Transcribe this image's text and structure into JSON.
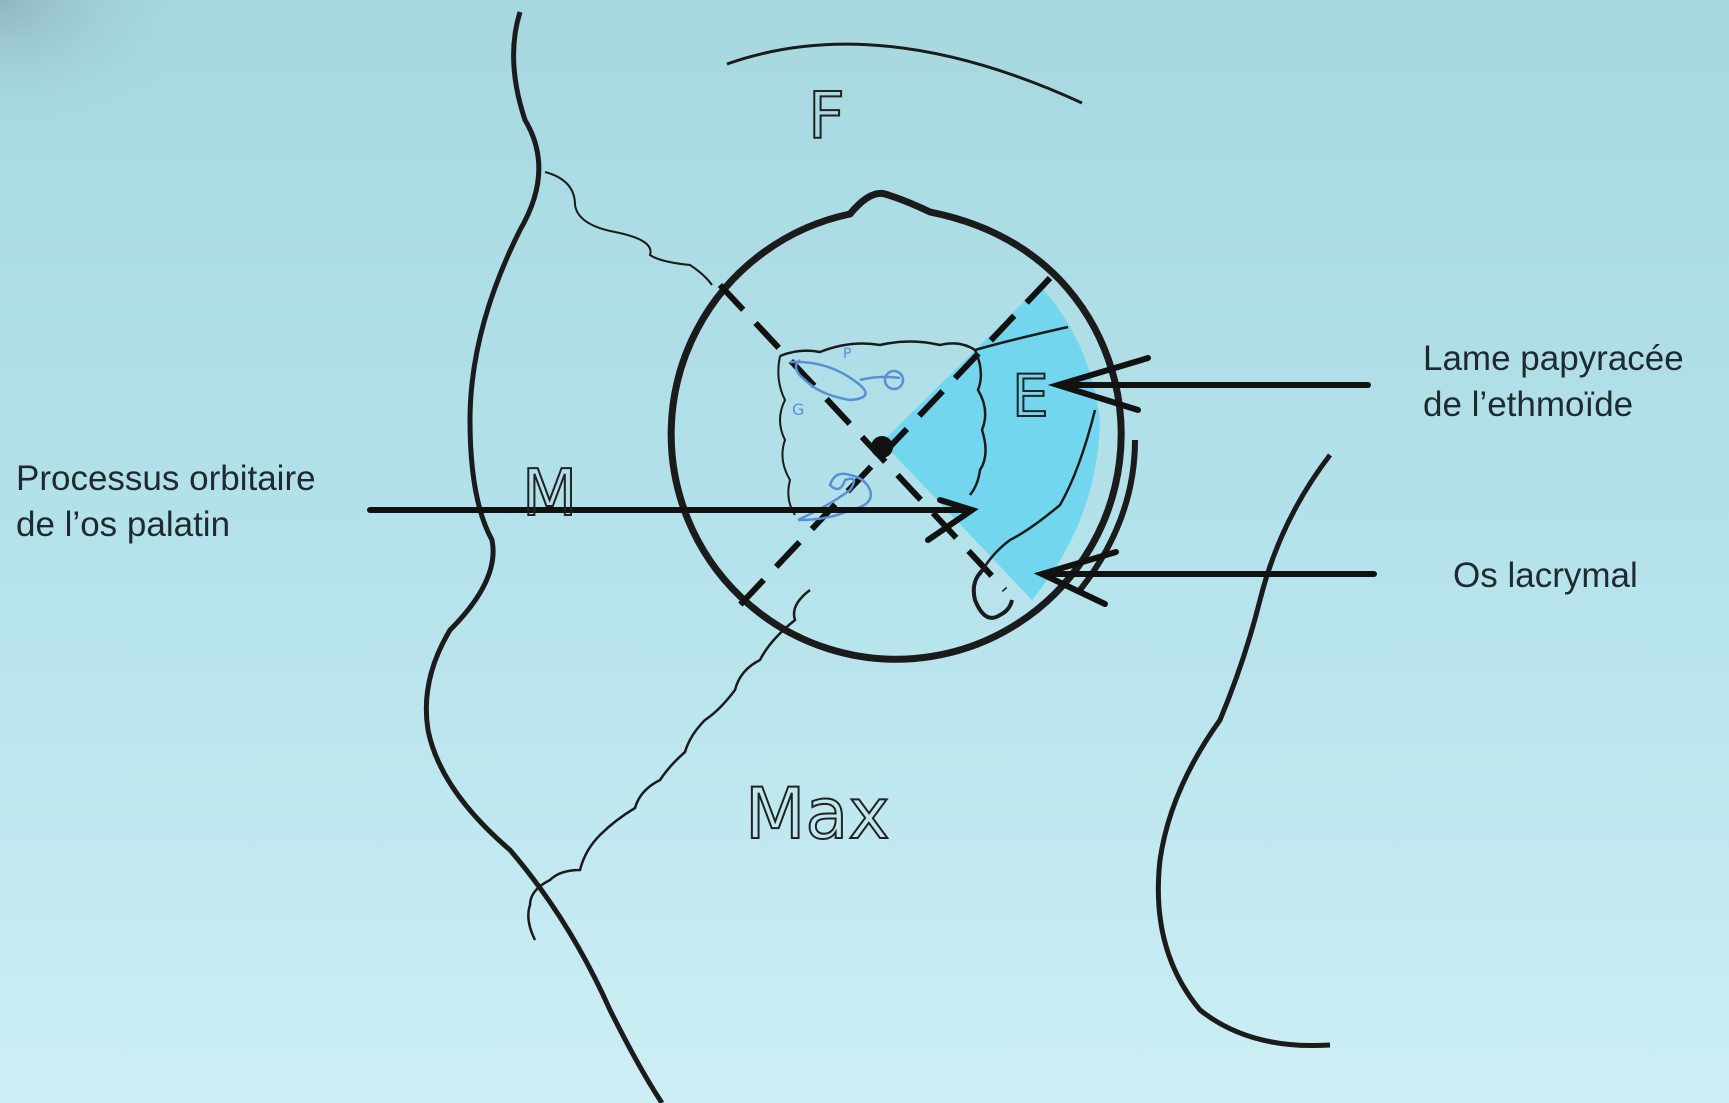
{
  "colors": {
    "background_top": "#a9d9e0",
    "background_bottom": "#cdeef3",
    "highlight": "#6fd7ee",
    "stroke": "#111111",
    "blue_ink": "#5a8fd6"
  },
  "labels": {
    "palatin_line1": "Processus orbitaire",
    "palatin_line2": "de l’os palatin",
    "ethmoide_line1": "Lame papyracée",
    "ethmoide_line2": "de l’ethmoïde",
    "lacrymal": "Os lacrymal"
  },
  "bones": {
    "frontal": "F",
    "ethmoid": "E",
    "malar": "M",
    "maxillary": "Max",
    "palatine_mark": "G",
    "small_mark": "P"
  }
}
